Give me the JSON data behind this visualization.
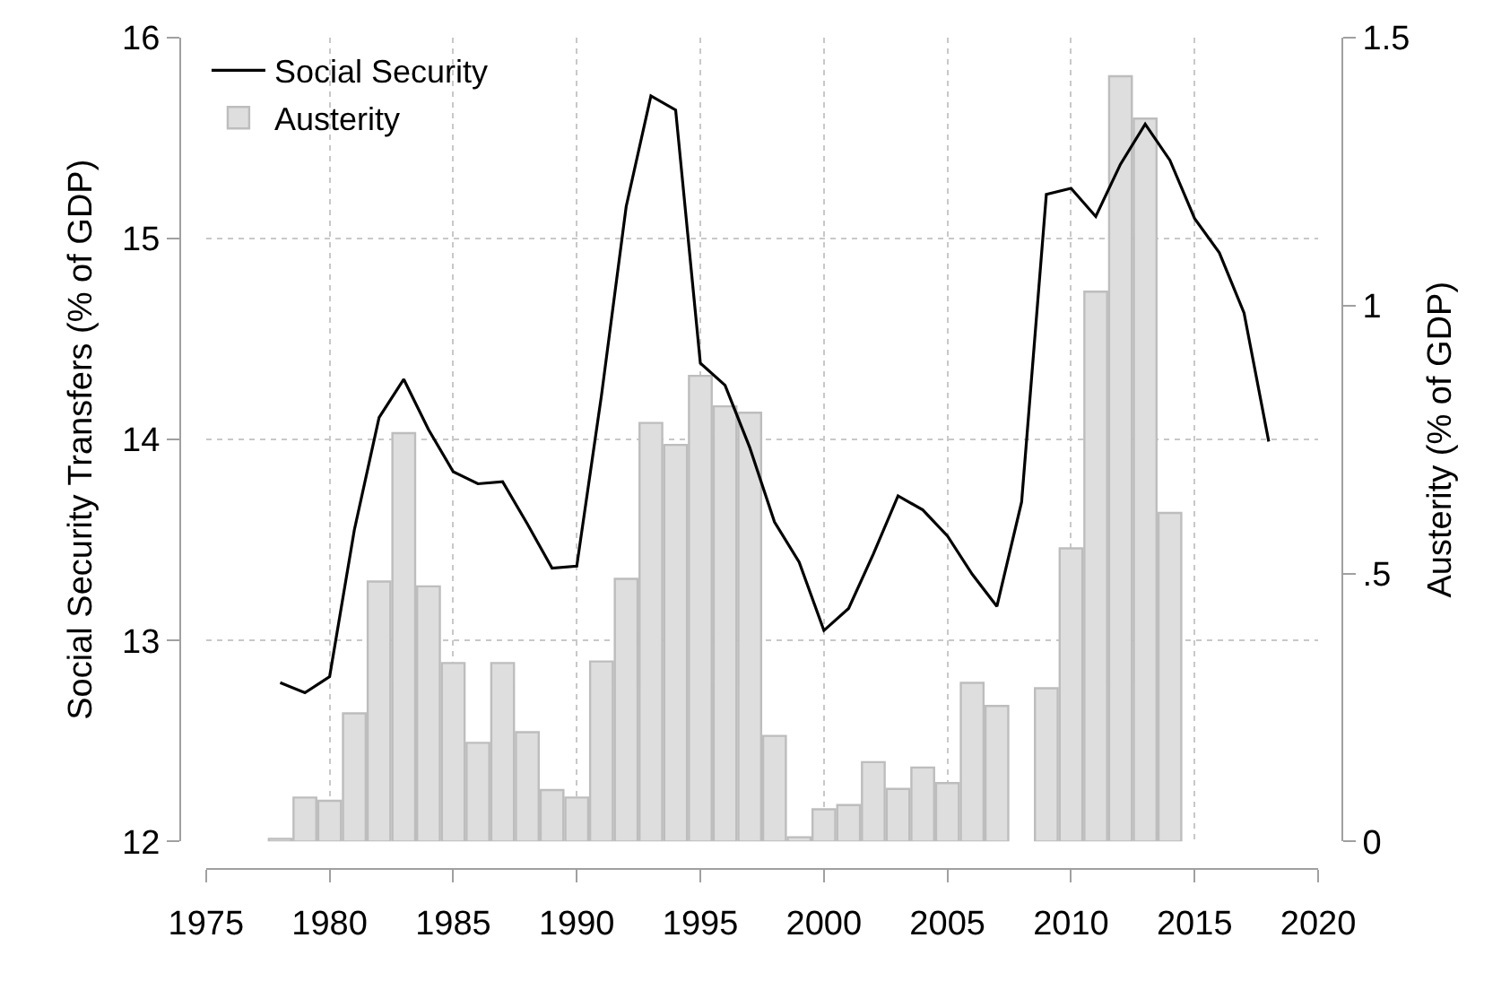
{
  "chart_data": {
    "type": "line",
    "ylabel": "Social Security Transfers (% of GDP)",
    "y2label": "Austerity (% of GDP)",
    "xlim": [
      1975,
      2020
    ],
    "xticks": [
      1975,
      1980,
      1985,
      1990,
      1995,
      2000,
      2005,
      2010,
      2015,
      2020
    ],
    "ylim": [
      12,
      16
    ],
    "yticks": [
      12,
      13,
      14,
      15,
      16
    ],
    "y2lim": [
      0,
      1.5
    ],
    "y2ticks": [
      {
        "value": 0,
        "label": "0"
      },
      {
        "value": 0.5,
        "label": ".5"
      },
      {
        "value": 1,
        "label": "1"
      },
      {
        "value": 1.5,
        "label": "1.5"
      }
    ],
    "grid": true,
    "legend": "top left",
    "series": [
      {
        "name": "Social Security",
        "color": "#000000",
        "x": [
          1978,
          1979,
          1980,
          1981,
          1982,
          1983,
          1984,
          1985,
          1986,
          1987,
          1988,
          1989,
          1990,
          1991,
          1992,
          1993,
          1994,
          1995,
          1996,
          1997,
          1998,
          1999,
          2000,
          2001,
          2002,
          2003,
          2004,
          2005,
          2006,
          2007,
          2008,
          2009,
          2010,
          2011,
          2012,
          2013,
          2014,
          2015,
          2016,
          2017,
          2018
        ],
        "values": [
          12.79,
          12.74,
          12.82,
          13.55,
          14.11,
          14.3,
          14.05,
          13.84,
          13.78,
          13.79,
          13.58,
          13.36,
          13.37,
          14.22,
          15.16,
          15.71,
          15.64,
          14.38,
          14.27,
          13.96,
          13.59,
          13.39,
          13.05,
          13.16,
          13.43,
          13.72,
          13.65,
          13.52,
          13.33,
          13.17,
          13.69,
          15.22,
          15.25,
          15.11,
          15.37,
          15.57,
          15.39,
          15.1,
          14.93,
          14.63,
          13.99
        ]
      },
      {
        "name": "Austerity",
        "type": "bar",
        "axis": "y2",
        "color": "#dedede",
        "x": [
          1978,
          1979,
          1980,
          1981,
          1982,
          1983,
          1984,
          1985,
          1986,
          1987,
          1988,
          1989,
          1990,
          1991,
          1992,
          1993,
          1994,
          1995,
          1996,
          1997,
          1998,
          1999,
          2000,
          2001,
          2002,
          2003,
          2004,
          2005,
          2006,
          2007,
          2008,
          2009,
          2010,
          2011,
          2012,
          2013,
          2014
        ],
        "values": [
          0.005,
          0.082,
          0.076,
          0.239,
          0.485,
          0.762,
          0.476,
          0.333,
          0.184,
          0.333,
          0.204,
          0.096,
          0.082,
          0.336,
          0.49,
          0.781,
          0.74,
          0.869,
          0.812,
          0.8,
          0.197,
          0.008,
          0.06,
          0.068,
          0.148,
          0.098,
          0.138,
          0.109,
          0.296,
          0.253,
          null,
          0.286,
          0.547,
          1.026,
          1.428,
          1.349,
          0.613
        ]
      }
    ]
  }
}
